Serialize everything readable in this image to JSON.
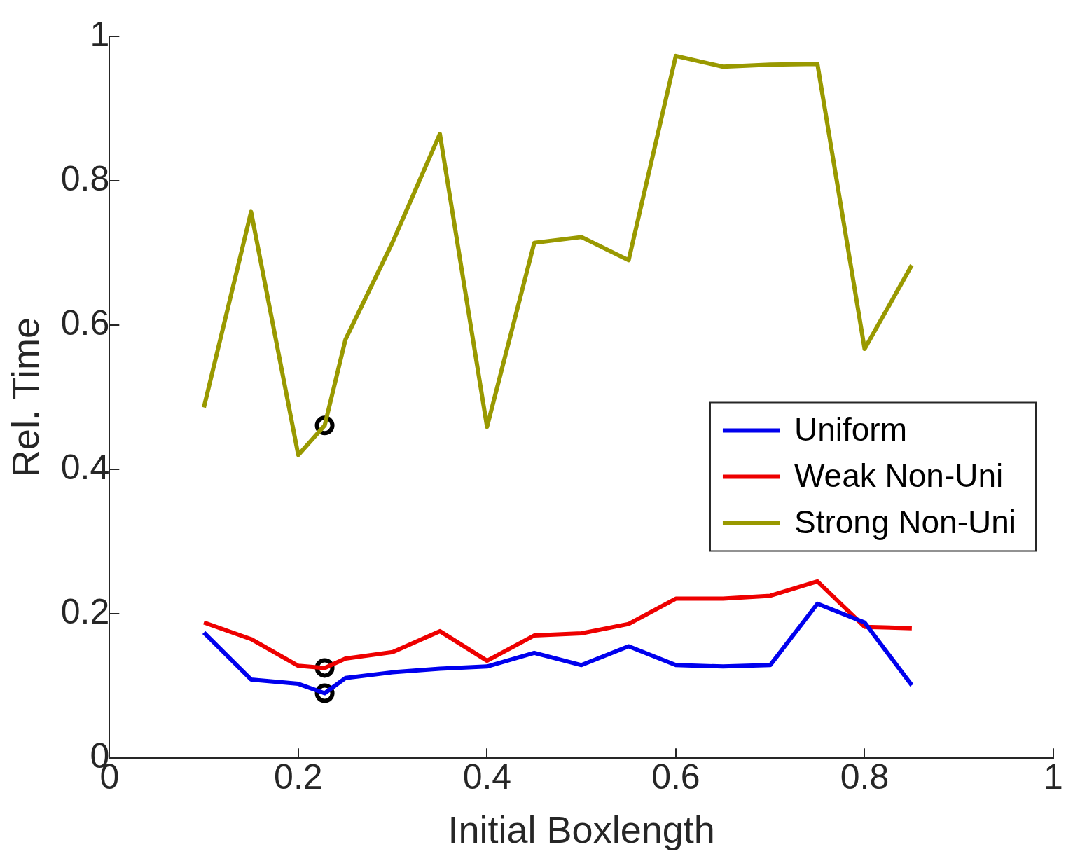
{
  "chart_data": {
    "type": "line",
    "xlabel": "Initial Boxlength",
    "ylabel": "Rel. Time",
    "x": [
      0.1,
      0.15,
      0.2,
      0.228,
      0.25,
      0.3,
      0.35,
      0.4,
      0.45,
      0.5,
      0.55,
      0.6,
      0.65,
      0.7,
      0.75,
      0.8,
      0.85
    ],
    "series": [
      {
        "name": "Uniform",
        "color": "#0000ee",
        "values": [
          0.174,
          0.109,
          0.103,
          0.09,
          0.111,
          0.119,
          0.124,
          0.127,
          0.146,
          0.129,
          0.155,
          0.129,
          0.127,
          0.129,
          0.214,
          0.188,
          0.101
        ]
      },
      {
        "name": "Weak Non-Uni",
        "color": "#ee0000",
        "values": [
          0.188,
          0.165,
          0.128,
          0.125,
          0.138,
          0.147,
          0.176,
          0.135,
          0.17,
          0.173,
          0.186,
          0.221,
          0.221,
          0.225,
          0.245,
          0.182,
          0.18
        ]
      },
      {
        "name": "Strong Non-Uni",
        "color": "#999900",
        "values": [
          0.486,
          0.757,
          0.42,
          0.461,
          0.58,
          0.715,
          0.865,
          0.459,
          0.714,
          0.722,
          0.69,
          0.973,
          0.958,
          0.961,
          0.962,
          0.567,
          0.683
        ]
      },
      {
        "type": "scatter",
        "color": "#000000",
        "marker": "circle",
        "values": [
          null,
          null,
          null,
          0.09,
          null,
          null,
          null,
          null,
          null,
          null,
          null,
          null,
          null,
          null,
          null,
          null,
          null
        ]
      },
      {
        "type": "scatter",
        "color": "#000000",
        "marker": "circle",
        "values": [
          null,
          null,
          null,
          0.125,
          null,
          null,
          null,
          null,
          null,
          null,
          null,
          null,
          null,
          null,
          null,
          null,
          null
        ]
      },
      {
        "type": "scatter",
        "color": "#000000",
        "marker": "circle",
        "values": [
          null,
          null,
          null,
          0.461,
          null,
          null,
          null,
          null,
          null,
          null,
          null,
          null,
          null,
          null,
          null,
          null,
          null
        ]
      }
    ],
    "xlim": [
      0,
      1
    ],
    "xticks": [
      0,
      0.2,
      0.4,
      0.6,
      0.8,
      1
    ],
    "ylim": [
      0,
      1
    ],
    "yticks": [
      0,
      0.2,
      0.4,
      0.6,
      0.8,
      1
    ],
    "grid": false,
    "legend": "right",
    "marker": "none",
    "line_style": "solid"
  }
}
